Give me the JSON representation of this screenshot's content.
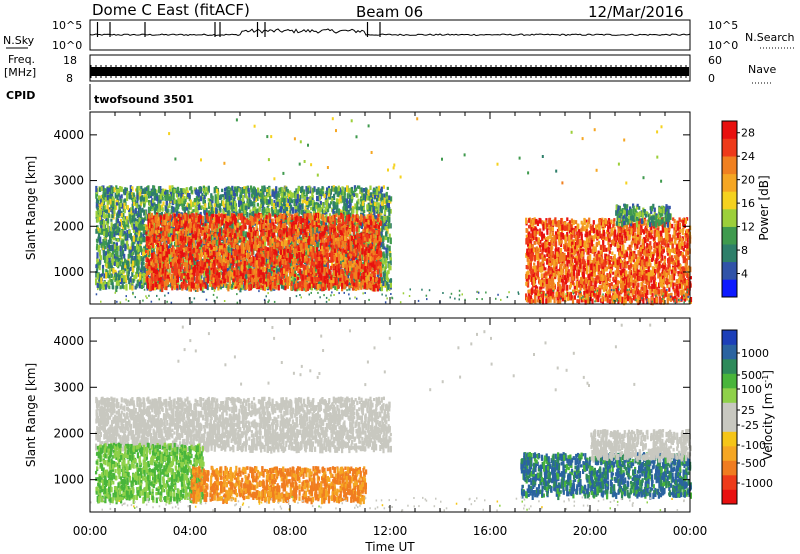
{
  "header": {
    "station": "Dome C East (fitACF)",
    "beam": "Beam 06",
    "date": "12/Mar/2016"
  },
  "param_panels": {
    "nsky": {
      "label": "N.Sky",
      "ticks": [
        "10^5",
        "10^0"
      ]
    },
    "freq": {
      "label_top": "Freq.",
      "label_unit": "[MHz]",
      "ticks": [
        "18",
        "8"
      ]
    },
    "nsearch": {
      "label": "N.Search",
      "ticks": [
        "10^5",
        "10^0"
      ]
    },
    "nave": {
      "label": "Nave",
      "ticks": [
        "60",
        "0"
      ]
    },
    "cpid": {
      "label": "CPID",
      "value": "twofsound 3501"
    }
  },
  "chart_data": [
    {
      "type": "heatmap",
      "name": "power",
      "ylabel": "Slant Range [km]",
      "xlabel": "Time UT",
      "xlim_hours": [
        0,
        24
      ],
      "ylim": [
        300,
        4500
      ],
      "y_ticks": [
        1000,
        2000,
        3000,
        4000
      ],
      "x_tick_labels": [
        "00:00",
        "04:00",
        "08:00",
        "12:00",
        "16:00",
        "20:00",
        "00:00"
      ],
      "colorbar": {
        "label": "Power [dB]",
        "ticks": [
          4,
          8,
          12,
          16,
          20,
          24,
          28
        ],
        "range": [
          0,
          30
        ],
        "colors": [
          "#0d1aff",
          "#3153a8",
          "#2e7f6a",
          "#3f9a4e",
          "#9ccf3a",
          "#f5d21f",
          "#f5a623",
          "#f08020",
          "#ee3a1a",
          "#e8100f"
        ]
      },
      "regions": [
        {
          "t": [
            0.2,
            12.0
          ],
          "r": [
            700,
            2900
          ],
          "value_range": [
            4,
            16
          ]
        },
        {
          "t": [
            2.2,
            11.6
          ],
          "r": [
            700,
            2300
          ],
          "value_range": [
            20,
            30
          ]
        },
        {
          "t": [
            17.4,
            24.0
          ],
          "r": [
            400,
            2200
          ],
          "value_range": [
            18,
            30
          ]
        },
        {
          "t": [
            21.0,
            23.2
          ],
          "r": [
            2100,
            2500
          ],
          "value_range": [
            4,
            14
          ]
        }
      ]
    },
    {
      "type": "heatmap",
      "name": "velocity",
      "ylabel": "Slant Range [km]",
      "xlabel": "Time UT",
      "xlim_hours": [
        0,
        24
      ],
      "ylim": [
        300,
        4500
      ],
      "y_ticks": [
        1000,
        2000,
        3000,
        4000
      ],
      "x_tick_labels": [
        "00:00",
        "04:00",
        "08:00",
        "12:00",
        "16:00",
        "20:00",
        "00:00"
      ],
      "colorbar": {
        "label": "Velocity [m s^-1]",
        "ticks": [
          "1000",
          "500",
          "100",
          "25",
          "-25",
          "-100",
          "-500",
          "-1000"
        ],
        "colors": [
          "#1c3fb8",
          "#2a63a0",
          "#2e8a5a",
          "#49b53b",
          "#8fd14a",
          "#c8c8c0",
          "#c8c8c0",
          "#f5c518",
          "#f5a623",
          "#f07c20",
          "#ee3b1a",
          "#e81010"
        ]
      },
      "regions": [
        {
          "t": [
            0.2,
            12.0
          ],
          "r": [
            1700,
            2800
          ],
          "value_range": [
            -25,
            25
          ]
        },
        {
          "t": [
            0.2,
            4.5
          ],
          "r": [
            600,
            1800
          ],
          "value_range": [
            25,
            200
          ]
        },
        {
          "t": [
            4.0,
            11.0
          ],
          "r": [
            600,
            1300
          ],
          "value_range": [
            -500,
            -100
          ]
        },
        {
          "t": [
            17.2,
            24.0
          ],
          "r": [
            700,
            1600
          ],
          "value_range": [
            100,
            1000
          ]
        },
        {
          "t": [
            20.0,
            24.0
          ],
          "r": [
            1500,
            2100
          ],
          "value_range": [
            -25,
            25
          ]
        }
      ]
    }
  ]
}
